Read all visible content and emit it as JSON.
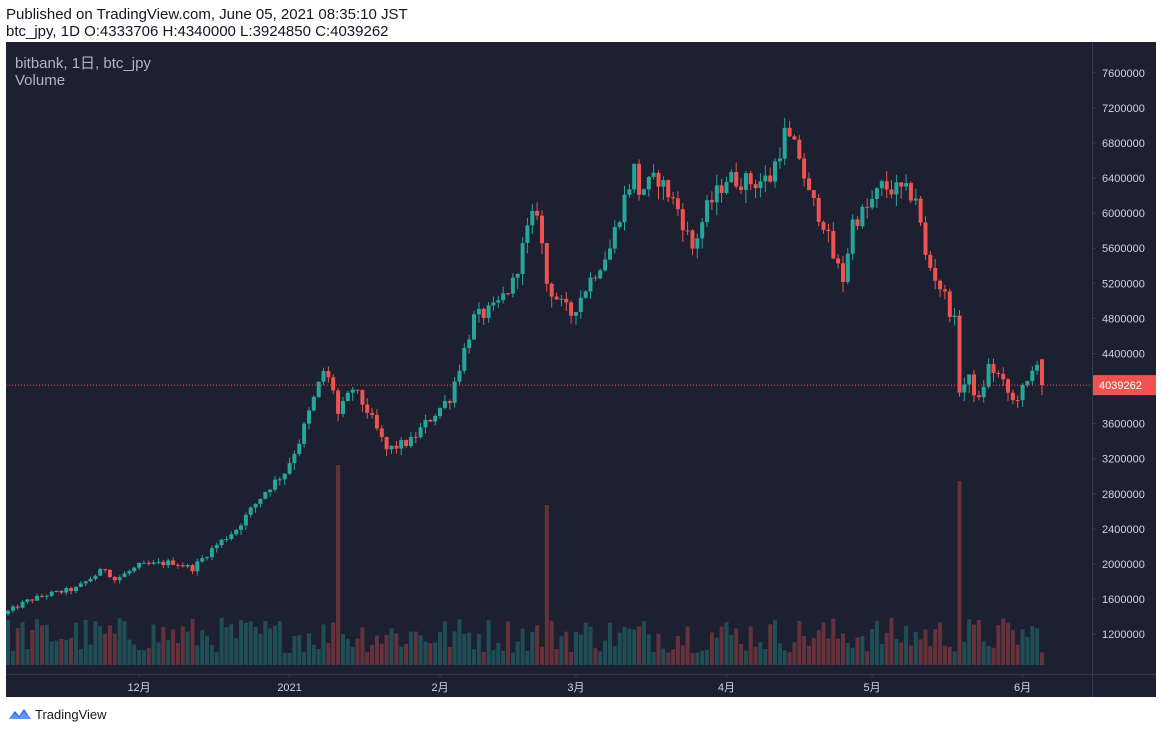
{
  "header": {
    "published": "Published on TradingView.com, June 05, 2021 08:35:10 JST",
    "ohlc_line": "btc_jpy, 1D O:4333706 H:4340000 L:3924850 C:4039262"
  },
  "legend": {
    "symbol_line": "bitbank, 1日, btc_jpy",
    "volume_label": "Volume"
  },
  "footer": {
    "brand": "TradingView",
    "logo_icon": "tradingview-logo-icon"
  },
  "colors": {
    "background": "#1c2030",
    "up": "#26a69a",
    "down": "#ef5350",
    "grid": "#262b3a",
    "axis_text": "#d1d4dc",
    "price_label_bg": "#ef5350"
  },
  "chart_data": {
    "type": "candlestick",
    "title": "bitbank, 1日, btc_jpy",
    "symbol": "btc_jpy",
    "exchange": "bitbank",
    "interval": "1日",
    "last_price": 4039262,
    "last_price_label": "4039262",
    "ohlc_last": {
      "open": 4333706,
      "high": 4340000,
      "low": 3924850,
      "close": 4039262
    },
    "ylim": [
      780000,
      7780000
    ],
    "yticks": [
      1200000,
      1600000,
      2000000,
      2400000,
      2800000,
      3200000,
      3600000,
      4000000,
      4400000,
      4800000,
      5200000,
      5600000,
      6000000,
      6400000,
      6800000,
      7200000,
      7600000
    ],
    "ytick_labels": [
      "1200000",
      "1600000",
      "2000000",
      "2400000",
      "2800000",
      "3200000",
      "3600000",
      "4000000",
      "4400000",
      "4800000",
      "5200000",
      "5600000",
      "6000000",
      "6400000",
      "6800000",
      "7200000",
      "7600000"
    ],
    "xticks": [
      {
        "label": "12月",
        "date": "2020-12-01"
      },
      {
        "label": "2021",
        "date": "2021-01-01"
      },
      {
        "label": "2月",
        "date": "2021-02-01"
      },
      {
        "label": "3月",
        "date": "2021-03-01"
      },
      {
        "label": "4月",
        "date": "2021-04-01"
      },
      {
        "label": "5月",
        "date": "2021-05-01"
      },
      {
        "label": "6月",
        "date": "2021-06-01"
      }
    ],
    "date_range": [
      "2020-11-04",
      "2021-06-05"
    ],
    "grid": false,
    "volume_overlay": true,
    "series": [
      {
        "date": "2020-11-04",
        "close": 1460000
      },
      {
        "date": "2020-11-08",
        "close": 1580000
      },
      {
        "date": "2020-11-12",
        "close": 1650000
      },
      {
        "date": "2020-11-18",
        "close": 1720000
      },
      {
        "date": "2020-11-24",
        "close": 1950000
      },
      {
        "date": "2020-11-26",
        "close": 1820000
      },
      {
        "date": "2020-12-01",
        "close": 1980000
      },
      {
        "date": "2020-12-08",
        "close": 2020000
      },
      {
        "date": "2020-12-12",
        "close": 1950000
      },
      {
        "date": "2020-12-16",
        "close": 2170000
      },
      {
        "date": "2020-12-21",
        "close": 2400000
      },
      {
        "date": "2020-12-27",
        "close": 2830000
      },
      {
        "date": "2020-12-31",
        "close": 3050000
      },
      {
        "date": "2021-01-03",
        "close": 3400000
      },
      {
        "date": "2021-01-08",
        "close": 4200000
      },
      {
        "date": "2021-01-10",
        "close": 4000000
      },
      {
        "date": "2021-01-11",
        "close": 3700000
      },
      {
        "date": "2021-01-14",
        "close": 4000000
      },
      {
        "date": "2021-01-17",
        "close": 3750000
      },
      {
        "date": "2021-01-21",
        "close": 3300000
      },
      {
        "date": "2021-01-26",
        "close": 3400000
      },
      {
        "date": "2021-01-29",
        "close": 3600000
      },
      {
        "date": "2021-02-03",
        "close": 3900000
      },
      {
        "date": "2021-02-08",
        "close": 4800000
      },
      {
        "date": "2021-02-12",
        "close": 4900000
      },
      {
        "date": "2021-02-16",
        "close": 5200000
      },
      {
        "date": "2021-02-19",
        "close": 5800000
      },
      {
        "date": "2021-02-21",
        "close": 6050000
      },
      {
        "date": "2021-02-23",
        "close": 5200000
      },
      {
        "date": "2021-02-26",
        "close": 4950000
      },
      {
        "date": "2021-02-28",
        "close": 4850000
      },
      {
        "date": "2021-03-04",
        "close": 5250000
      },
      {
        "date": "2021-03-08",
        "close": 5600000
      },
      {
        "date": "2021-03-10",
        "close": 6000000
      },
      {
        "date": "2021-03-13",
        "close": 6500000
      },
      {
        "date": "2021-03-14",
        "close": 6250000
      },
      {
        "date": "2021-03-18",
        "close": 6400000
      },
      {
        "date": "2021-03-22",
        "close": 6050000
      },
      {
        "date": "2021-03-25",
        "close": 5600000
      },
      {
        "date": "2021-03-28",
        "close": 6050000
      },
      {
        "date": "2021-04-01",
        "close": 6400000
      },
      {
        "date": "2021-04-07",
        "close": 6350000
      },
      {
        "date": "2021-04-10",
        "close": 6400000
      },
      {
        "date": "2021-04-13",
        "close": 6900000
      },
      {
        "date": "2021-04-16",
        "close": 6650000
      },
      {
        "date": "2021-04-18",
        "close": 6200000
      },
      {
        "date": "2021-04-21",
        "close": 5900000
      },
      {
        "date": "2021-04-23",
        "close": 5500000
      },
      {
        "date": "2021-04-25",
        "close": 5250000
      },
      {
        "date": "2021-04-27",
        "close": 5900000
      },
      {
        "date": "2021-04-30",
        "close": 6050000
      },
      {
        "date": "2021-05-03",
        "close": 6300000
      },
      {
        "date": "2021-05-07",
        "close": 6250000
      },
      {
        "date": "2021-05-10",
        "close": 6200000
      },
      {
        "date": "2021-05-12",
        "close": 5500000
      },
      {
        "date": "2021-05-16",
        "close": 5050000
      },
      {
        "date": "2021-05-18",
        "close": 4750000
      },
      {
        "date": "2021-05-19",
        "close": 4000000
      },
      {
        "date": "2021-05-21",
        "close": 4100000
      },
      {
        "date": "2021-05-23",
        "close": 3850000
      },
      {
        "date": "2021-05-25",
        "close": 4250000
      },
      {
        "date": "2021-05-27",
        "close": 4150000
      },
      {
        "date": "2021-05-30",
        "close": 3850000
      },
      {
        "date": "2021-06-02",
        "close": 4050000
      },
      {
        "date": "2021-06-04",
        "close": 4333706
      },
      {
        "date": "2021-06-05",
        "close": 4039262
      }
    ],
    "volume_spikes": [
      {
        "date": "2021-01-11",
        "volume": 2500000,
        "color": "down"
      },
      {
        "date": "2021-02-23",
        "volume": 2000000,
        "color": "down"
      },
      {
        "date": "2021-05-19",
        "volume": 2300000,
        "color": "down"
      }
    ]
  }
}
